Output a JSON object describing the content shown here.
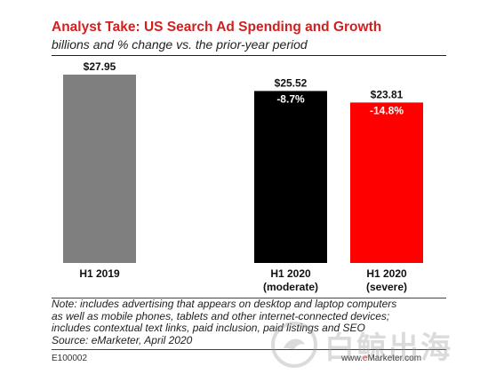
{
  "header": {
    "title": "Analyst Take: US Search Ad Spending and Growth",
    "subtitle": "billions and % change vs. the prior-year period"
  },
  "chart_data": {
    "type": "bar",
    "categories": [
      "H1 2019",
      "H1 2020 (moderate)",
      "H1 2020 (severe)"
    ],
    "category_lines": [
      [
        "H1 2019"
      ],
      [
        "H1 2020",
        "(moderate)"
      ],
      [
        "H1 2020",
        "(severe)"
      ]
    ],
    "values": [
      27.95,
      25.52,
      23.81
    ],
    "value_labels": [
      "$27.95",
      "$25.52",
      "$23.81"
    ],
    "change_labels": [
      "",
      "-8.7%",
      "-14.8%"
    ],
    "bar_colors": [
      "#7f7f7f",
      "#000000",
      "#ff0000"
    ],
    "change_label_colors": [
      "#ffffff",
      "#ffffff",
      "#ffffff"
    ],
    "ylim": [
      0,
      27.95
    ],
    "grid": false,
    "legend": "none"
  },
  "footer": {
    "note_lines": [
      "Note: includes advertising that appears on desktop and laptop computers",
      "as well as mobile phones, tablets and other internet-connected devices;",
      "includes contextual text links, paid inclusion, paid listings and SEO",
      "Source: eMarketer, April 2020"
    ],
    "code": "E100002",
    "brand_prefix": "www.",
    "brand_e": "e",
    "brand_rest": "Marketer.com"
  },
  "watermark": {
    "text": "白鲸出海",
    "logo_icon": "whale-logo-icon"
  }
}
